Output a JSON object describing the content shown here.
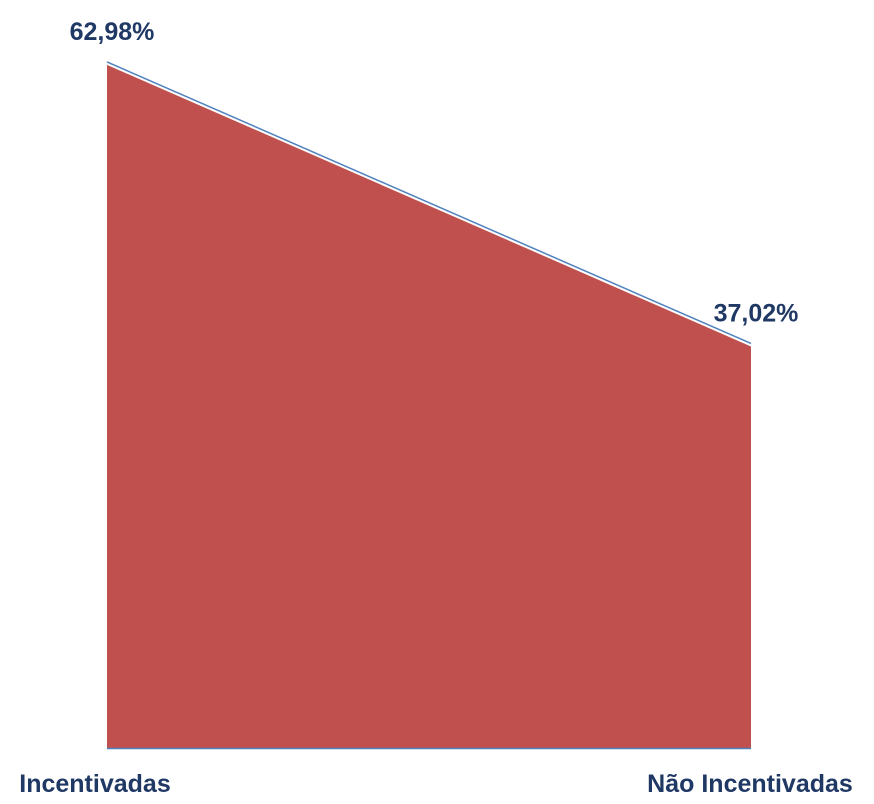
{
  "chart_data": {
    "type": "area",
    "categories": [
      "Incentivadas",
      "Não Incentivadas"
    ],
    "values": [
      62.98,
      37.02
    ],
    "data_labels": [
      "62,98%",
      "37,02%"
    ],
    "title": "",
    "xlabel": "",
    "ylabel": "",
    "ylim": [
      0,
      65
    ],
    "grid": false,
    "legend": "none",
    "colors": {
      "fill": "#C0504D",
      "line": "#4F81BD",
      "text": "#1F3864"
    }
  }
}
